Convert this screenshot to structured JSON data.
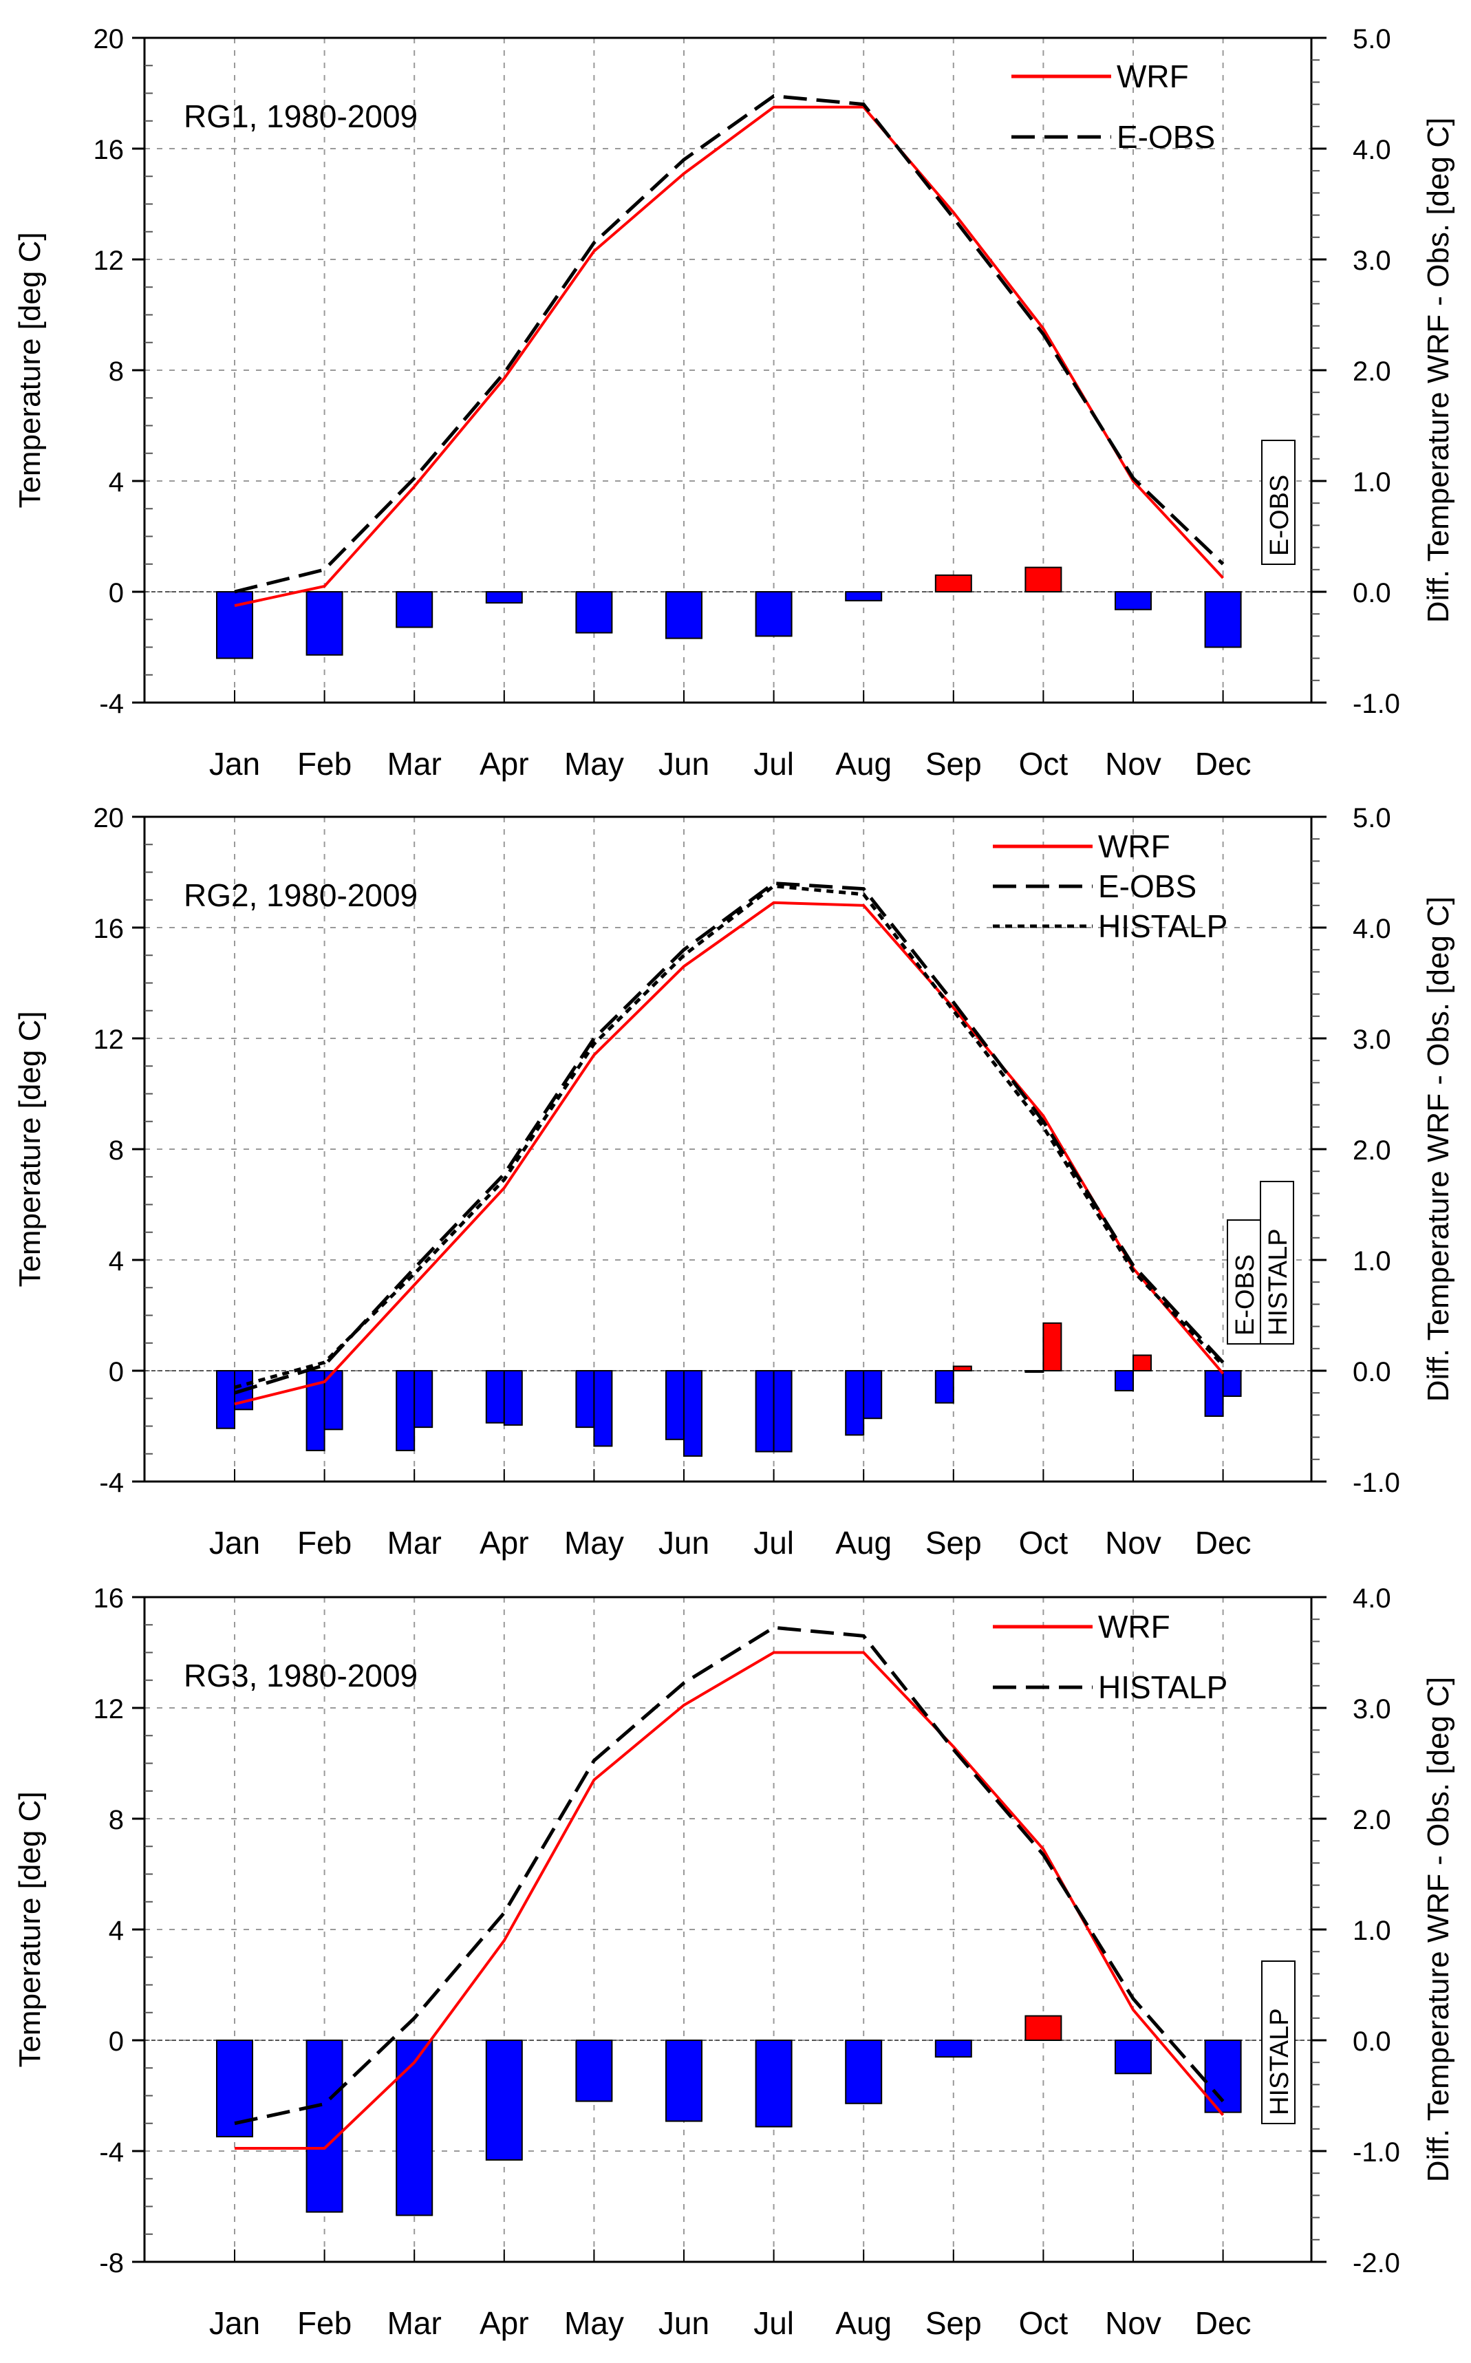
{
  "chart_data": [
    {
      "type": "line+bar",
      "title": "RG1, 1980-2009",
      "categories": [
        "Jan",
        "Feb",
        "Mar",
        "Apr",
        "May",
        "Jun",
        "Jul",
        "Aug",
        "Sep",
        "Oct",
        "Nov",
        "Dec"
      ],
      "ylabel": "Temperature [deg C]",
      "y2label": "Diff. Temperature WRF - Obs. [deg C]",
      "ylim": [
        -4,
        20
      ],
      "yticks": [
        -4,
        0,
        4,
        8,
        12,
        16,
        20
      ],
      "y2lim": [
        -1.0,
        5.0
      ],
      "y2ticks": [
        "-1.0",
        "0.0",
        "1.0",
        "2.0",
        "3.0",
        "4.0",
        "5.0"
      ],
      "grid": true,
      "legend_placement": "top-right",
      "series": [
        {
          "name": "WRF",
          "style": "solid",
          "color": "#ff0000",
          "values": [
            -0.5,
            0.2,
            3.8,
            7.7,
            12.3,
            15.1,
            17.5,
            17.5,
            13.7,
            9.5,
            4.0,
            0.5
          ]
        },
        {
          "name": "E-OBS",
          "style": "longdash",
          "color": "#000000",
          "values": [
            0.0,
            0.8,
            4.1,
            7.9,
            12.6,
            15.6,
            17.9,
            17.6,
            13.5,
            9.3,
            4.1,
            1.0
          ]
        }
      ],
      "diff_bars": [
        {
          "name": "E-OBS",
          "values": [
            -0.6,
            -0.57,
            -0.32,
            -0.1,
            -0.37,
            -0.42,
            -0.4,
            -0.08,
            0.15,
            0.22,
            -0.16,
            -0.5
          ]
        }
      ],
      "positive_color": "#ff0000",
      "negative_color": "#0000ff"
    },
    {
      "type": "line+bar",
      "title": "RG2, 1980-2009",
      "categories": [
        "Jan",
        "Feb",
        "Mar",
        "Apr",
        "May",
        "Jun",
        "Jul",
        "Aug",
        "Sep",
        "Oct",
        "Nov",
        "Dec"
      ],
      "ylabel": "Temperature [deg C]",
      "y2label": "Diff. Temperature WRF - Obs. [deg C]",
      "ylim": [
        -4,
        20
      ],
      "yticks": [
        -4,
        0,
        4,
        8,
        12,
        16,
        20
      ],
      "y2lim": [
        -1.0,
        5.0
      ],
      "y2ticks": [
        "-1.0",
        "0.0",
        "1.0",
        "2.0",
        "3.0",
        "4.0",
        "5.0"
      ],
      "grid": true,
      "legend_placement": "top-right",
      "series": [
        {
          "name": "WRF",
          "style": "solid",
          "color": "#ff0000",
          "values": [
            -1.2,
            -0.4,
            3.1,
            6.6,
            11.4,
            14.6,
            16.9,
            16.8,
            13.1,
            9.2,
            3.7,
            -0.1
          ]
        },
        {
          "name": "E-OBS",
          "style": "longdash",
          "color": "#000000",
          "values": [
            -0.8,
            0.2,
            3.7,
            7.1,
            12.0,
            15.2,
            17.6,
            17.4,
            13.3,
            9.0,
            3.8,
            0.3
          ]
        },
        {
          "name": "HISTALP",
          "style": "shortdash",
          "color": "#000000",
          "values": [
            -0.6,
            0.3,
            3.5,
            6.9,
            11.8,
            15.0,
            17.5,
            17.2,
            13.0,
            8.8,
            3.6,
            0.2
          ]
        }
      ],
      "diff_bars": [
        {
          "name": "E-OBS",
          "values": [
            -0.52,
            -0.72,
            -0.72,
            -0.47,
            -0.51,
            -0.62,
            -0.73,
            -0.58,
            -0.29,
            -0.01,
            -0.18,
            -0.41
          ]
        },
        {
          "name": "HISTALP",
          "values": [
            -0.35,
            -0.53,
            -0.51,
            -0.49,
            -0.68,
            -0.77,
            -0.73,
            -0.43,
            0.04,
            0.43,
            0.14,
            -0.23
          ]
        }
      ],
      "positive_color": "#ff0000",
      "negative_color": "#0000ff"
    },
    {
      "type": "line+bar",
      "title": "RG3, 1980-2009",
      "categories": [
        "Jan",
        "Feb",
        "Mar",
        "Apr",
        "May",
        "Jun",
        "Jul",
        "Aug",
        "Sep",
        "Oct",
        "Nov",
        "Dec"
      ],
      "ylabel": "Temperature [deg C]",
      "y2label": "Diff. Temperature WRF - Obs. [deg C]",
      "ylim": [
        -8,
        16
      ],
      "yticks": [
        -8,
        -4,
        0,
        4,
        8,
        12,
        16
      ],
      "y2lim": [
        -2.0,
        4.0
      ],
      "y2ticks": [
        "-2.0",
        "-1.0",
        "0.0",
        "1.0",
        "2.0",
        "3.0",
        "4.0"
      ],
      "grid": true,
      "legend_placement": "top-right",
      "series": [
        {
          "name": "WRF",
          "style": "solid",
          "color": "#ff0000",
          "values": [
            -3.9,
            -3.9,
            -0.8,
            3.6,
            9.4,
            12.1,
            14.0,
            14.0,
            10.6,
            6.9,
            1.1,
            -2.7
          ]
        },
        {
          "name": "HISTALP",
          "style": "longdash",
          "color": "#000000",
          "values": [
            -3.0,
            -2.3,
            0.8,
            4.6,
            10.1,
            12.9,
            14.9,
            14.6,
            10.5,
            6.7,
            1.5,
            -2.2
          ]
        }
      ],
      "diff_bars": [
        {
          "name": "HISTALP",
          "values": [
            -0.87,
            -1.55,
            -1.58,
            -1.08,
            -0.55,
            -0.73,
            -0.78,
            -0.57,
            -0.15,
            0.22,
            -0.3,
            -0.65
          ]
        }
      ],
      "positive_color": "#ff0000",
      "negative_color": "#0000ff"
    }
  ]
}
